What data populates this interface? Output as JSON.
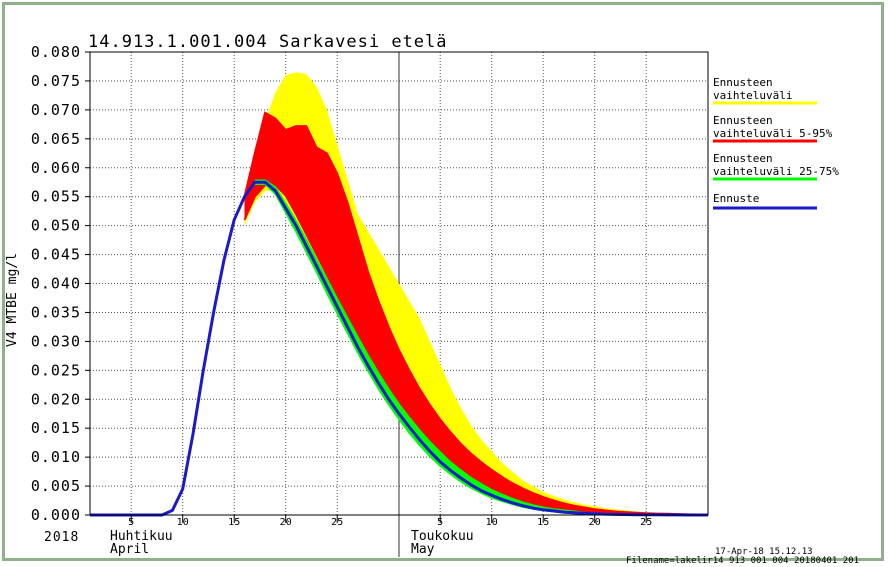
{
  "chart_data": {
    "type": "area",
    "title": "14.913.1.001.004 Sarkavesi etelä",
    "ylabel": "V4 MTBE mg/l",
    "ylim": [
      0,
      0.08
    ],
    "yticks": [
      "0.000",
      "0.005",
      "0.010",
      "0.015",
      "0.020",
      "0.025",
      "0.030",
      "0.035",
      "0.040",
      "0.045",
      "0.050",
      "0.055",
      "0.060",
      "0.065",
      "0.070",
      "0.075",
      "0.080"
    ],
    "xlim": [
      0,
      60
    ],
    "day_ticks": [
      {
        "x": 4,
        "label": "5"
      },
      {
        "x": 9,
        "label": "10"
      },
      {
        "x": 14,
        "label": "15"
      },
      {
        "x": 19,
        "label": "20"
      },
      {
        "x": 24,
        "label": "25"
      },
      {
        "x": 34,
        "label": "5"
      },
      {
        "x": 39,
        "label": "10"
      },
      {
        "x": 44,
        "label": "15"
      },
      {
        "x": 49,
        "label": "20"
      },
      {
        "x": 54,
        "label": "25"
      }
    ],
    "month_boundaries": [
      0,
      30
    ],
    "year_label": "2018",
    "months": [
      {
        "x": 0,
        "name_fi": "Huhtikuu",
        "name_en": "April"
      },
      {
        "x": 30,
        "name_fi": "Toukokuu",
        "name_en": "May"
      }
    ],
    "grid": true,
    "legend_position": "right",
    "colors": {
      "band_full": "#ffff00",
      "band_5_95": "#ff0000",
      "band_25_75": "#00ff00",
      "forecast": "#1a1acc"
    },
    "legend": [
      {
        "name": "Ennusteen vaihteluväli",
        "line1": "Ennusteen",
        "line2": "vaihteluväli",
        "color": "#ffff00"
      },
      {
        "name": "Ennusteen vaihteluväli 5-95%",
        "line1": "Ennusteen",
        "line2": "vaihteluväli 5-95%",
        "color": "#ff0000"
      },
      {
        "name": "Ennusteen vaihteluväli 25-75%",
        "line1": "Ennusteen",
        "line2": "vaihteluväli 25-75%",
        "color": "#00ff00"
      },
      {
        "name": "Ennuste",
        "line1": "Ennuste",
        "line2": "",
        "color": "#1a1acc"
      }
    ],
    "series": [
      {
        "name": "Ennuste",
        "x": [
          0,
          1,
          2,
          3,
          4,
          5,
          6,
          7,
          8,
          9,
          10,
          11,
          12,
          13,
          14,
          15,
          16,
          17,
          18,
          19,
          20,
          21,
          22,
          23,
          24,
          25,
          26,
          27,
          28,
          29,
          30,
          31,
          32,
          33,
          34,
          35,
          36,
          37,
          38,
          39,
          40,
          41,
          42,
          43,
          44,
          45,
          46,
          47,
          48,
          49,
          50,
          51,
          52,
          53,
          54,
          55,
          56,
          57,
          58,
          59,
          60
        ],
        "y": [
          0,
          0,
          0,
          0,
          0,
          0,
          0,
          0,
          0.0008,
          0.0045,
          0.014,
          0.025,
          0.035,
          0.044,
          0.051,
          0.055,
          0.0575,
          0.0575,
          0.056,
          0.053,
          0.05,
          0.0465,
          0.043,
          0.0395,
          0.036,
          0.0325,
          0.029,
          0.0258,
          0.0228,
          0.02,
          0.0175,
          0.0152,
          0.013,
          0.011,
          0.0092,
          0.0077,
          0.0064,
          0.0052,
          0.0042,
          0.0034,
          0.0027,
          0.0021,
          0.0016,
          0.0012,
          0.0009,
          0.0007,
          0.0005,
          0.0004,
          0.0003,
          0.0002,
          0.00015,
          0.0001,
          8e-05,
          6e-05,
          4e-05,
          3e-05,
          2e-05,
          1e-05,
          0,
          0,
          0
        ]
      },
      {
        "name": "Ennusteen vaihteluväli",
        "x": [
          15,
          16,
          17,
          18,
          19,
          20,
          21,
          22,
          23,
          24,
          25,
          26,
          27,
          28,
          29,
          30,
          31,
          32,
          33,
          34,
          35,
          36,
          37,
          38,
          39,
          40,
          41,
          42,
          43,
          44,
          45,
          46,
          47,
          48,
          49,
          50,
          51,
          52,
          53,
          54,
          55,
          56,
          57,
          58,
          59,
          60
        ],
        "upper": [
          0.052,
          0.062,
          0.068,
          0.073,
          0.076,
          0.0765,
          0.0762,
          0.074,
          0.07,
          0.064,
          0.058,
          0.052,
          0.049,
          0.046,
          0.043,
          0.04,
          0.037,
          0.034,
          0.03,
          0.026,
          0.022,
          0.0185,
          0.0155,
          0.013,
          0.011,
          0.009,
          0.0075,
          0.006,
          0.005,
          0.004,
          0.0033,
          0.0027,
          0.0022,
          0.0018,
          0.0015,
          0.0012,
          0.001,
          0.0008,
          0.0006,
          0.0005,
          0.0004,
          0.0003,
          0.0002,
          0.00015,
          0.0001,
          0.0001
        ],
        "lower": [
          0.05,
          0.054,
          0.056,
          0.056,
          0.054,
          0.0505,
          0.047,
          0.0435,
          0.04,
          0.0365,
          0.033,
          0.0295,
          0.0262,
          0.023,
          0.02,
          0.0172,
          0.0147,
          0.0124,
          0.0103,
          0.0085,
          0.007,
          0.0057,
          0.0046,
          0.0037,
          0.003,
          0.0024,
          0.0019,
          0.0015,
          0.0011,
          0.0008,
          0.0006,
          0.0004,
          0.0003,
          0.0002,
          0.00015,
          0.0001,
          5e-05,
          3e-05,
          0,
          0,
          0,
          0,
          0,
          0,
          0,
          0
        ]
      },
      {
        "name": "Ennusteen vaihteluväli 5-95%",
        "x": [
          15,
          16,
          17,
          18,
          19,
          20,
          21,
          22,
          23,
          24,
          25,
          26,
          27,
          28,
          29,
          30,
          31,
          32,
          33,
          34,
          35,
          36,
          37,
          38,
          39,
          40,
          41,
          42,
          43,
          44,
          45,
          46,
          47,
          48,
          49,
          50,
          51,
          52,
          53,
          54,
          55,
          56,
          57,
          58,
          59,
          60
        ],
        "upper": [
          0.055,
          0.0625,
          0.0695,
          0.0685,
          0.0665,
          0.0672,
          0.0672,
          0.0635,
          0.0625,
          0.059,
          0.054,
          0.048,
          0.042,
          0.037,
          0.0325,
          0.0285,
          0.025,
          0.0218,
          0.019,
          0.0165,
          0.0143,
          0.0123,
          0.0106,
          0.0091,
          0.0078,
          0.0066,
          0.0055,
          0.0046,
          0.0038,
          0.0031,
          0.0025,
          0.002,
          0.0016,
          0.0013,
          0.001,
          0.0008,
          0.0006,
          0.0005,
          0.0004,
          0.0003,
          0.00025,
          0.0002,
          0.00015,
          0.0001,
          8e-05,
          5e-05
        ],
        "lower": [
          0.051,
          0.055,
          0.057,
          0.057,
          0.0552,
          0.052,
          0.0485,
          0.045,
          0.0415,
          0.038,
          0.0345,
          0.031,
          0.0277,
          0.0245,
          0.0215,
          0.0187,
          0.0161,
          0.0138,
          0.0117,
          0.0098,
          0.0082,
          0.0068,
          0.0055,
          0.0045,
          0.0036,
          0.0029,
          0.0023,
          0.0018,
          0.0014,
          0.001,
          0.0008,
          0.0006,
          0.0004,
          0.0003,
          0.0002,
          0.00015,
          0.0001,
          6e-05,
          3e-05,
          2e-05,
          0,
          0,
          0,
          0,
          0,
          0
        ]
      },
      {
        "name": "Ennusteen vaihteluväli 25-75%",
        "x": [
          16,
          17,
          18,
          19,
          20,
          21,
          22,
          23,
          24,
          25,
          26,
          27,
          28,
          29,
          30,
          31,
          32,
          33,
          34,
          35,
          36,
          37,
          38,
          39,
          40,
          41,
          42,
          43,
          44,
          45,
          46,
          47,
          48,
          49,
          50,
          51,
          52,
          53,
          54,
          55,
          56,
          57,
          58,
          59,
          60
        ],
        "upper": [
          0.0578,
          0.0578,
          0.0566,
          0.0538,
          0.0508,
          0.0475,
          0.0441,
          0.0407,
          0.0373,
          0.034,
          0.0307,
          0.0275,
          0.0245,
          0.0217,
          0.0191,
          0.0168,
          0.0146,
          0.0126,
          0.0108,
          0.0091,
          0.0077,
          0.0064,
          0.0053,
          0.0043,
          0.0035,
          0.0028,
          0.0022,
          0.0017,
          0.0013,
          0.001,
          0.0008,
          0.0006,
          0.0004,
          0.0003,
          0.0002,
          0.00015,
          0.0001,
          8e-05,
          5e-05,
          3e-05,
          2e-05,
          1e-05,
          0,
          0,
          0
        ],
        "lower": [
          0.0572,
          0.0572,
          0.0555,
          0.0523,
          0.049,
          0.0455,
          0.042,
          0.0384,
          0.0349,
          0.0315,
          0.0281,
          0.0249,
          0.0219,
          0.0191,
          0.0166,
          0.0142,
          0.0121,
          0.0102,
          0.0085,
          0.0071,
          0.0058,
          0.0047,
          0.0038,
          0.003,
          0.0024,
          0.0019,
          0.0014,
          0.0011,
          0.0008,
          0.0006,
          0.0004,
          0.0003,
          0.0002,
          0.00015,
          0.0001,
          7e-05,
          5e-05,
          3e-05,
          2e-05,
          1e-05,
          0,
          0,
          0,
          0,
          0
        ]
      }
    ],
    "footer": {
      "timestamp": "17-Apr-18 15.12.13",
      "filename": "Filename=lakelir14 913 001 004 20180401 201"
    }
  }
}
